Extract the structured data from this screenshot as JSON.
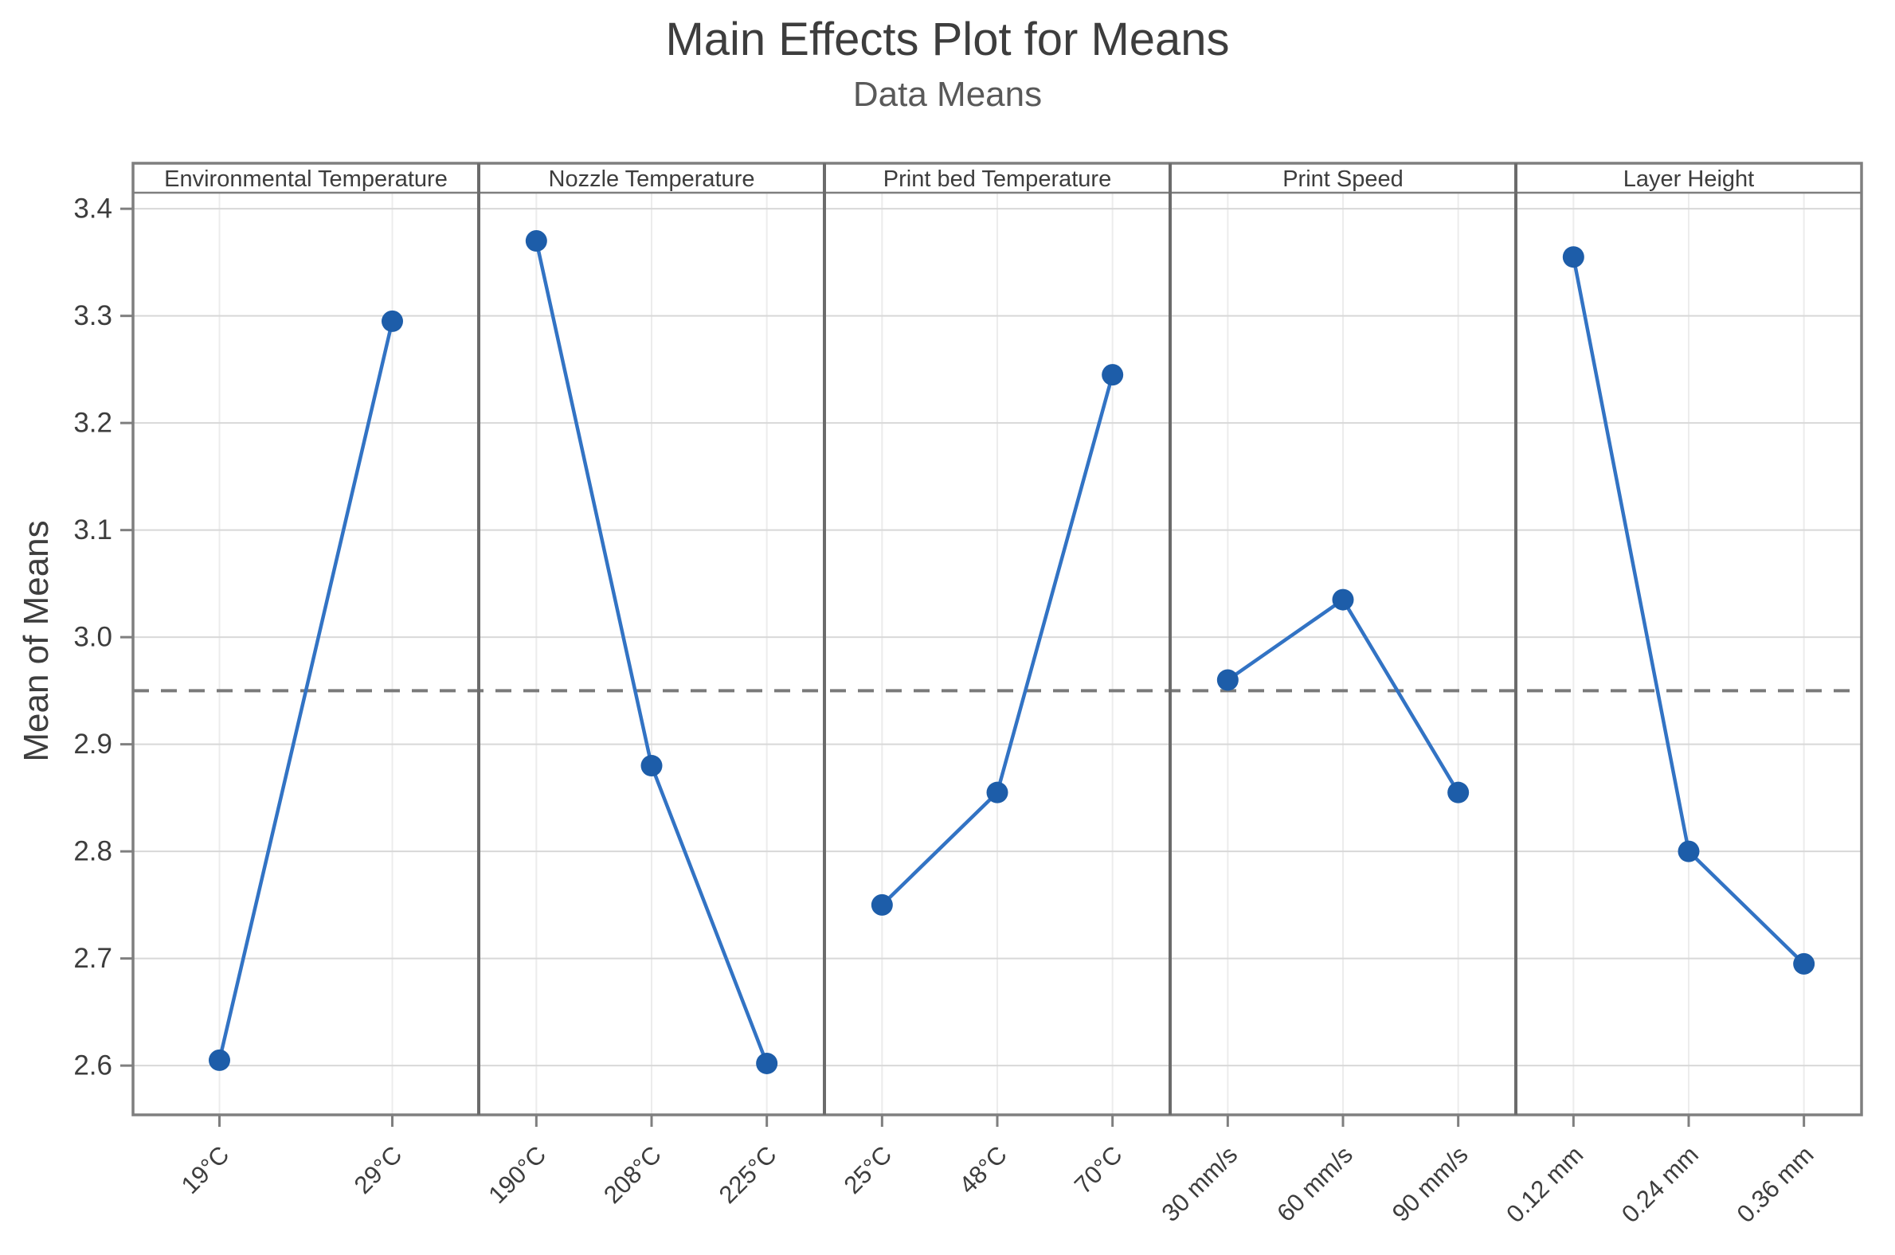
{
  "chart_data": {
    "type": "line",
    "title": "Main Effects Plot for Means",
    "subtitle": "Data Means",
    "ylabel": "Mean of Means",
    "ylim": [
      2.554,
      3.415
    ],
    "yticks": [
      2.6,
      2.7,
      2.8,
      2.9,
      3.0,
      3.1,
      3.2,
      3.3,
      3.4
    ],
    "reference_line": 2.95,
    "grid": true,
    "legend": "none",
    "panels": [
      {
        "title": "Environmental Temperature",
        "categories": [
          "19°C",
          "29°C"
        ],
        "values": [
          2.605,
          3.295
        ]
      },
      {
        "title": "Nozzle Temperature",
        "categories": [
          "190°C",
          "208°C",
          "225°C"
        ],
        "values": [
          3.37,
          2.88,
          2.602
        ]
      },
      {
        "title": "Print bed Temperature",
        "categories": [
          "25°C",
          "48°C",
          "70°C"
        ],
        "values": [
          2.75,
          2.855,
          3.245
        ]
      },
      {
        "title": "Print Speed",
        "categories": [
          "30 mm/s",
          "60 mm/s",
          "90 mm/s"
        ],
        "values": [
          2.96,
          3.035,
          2.855
        ]
      },
      {
        "title": "Layer Height",
        "categories": [
          "0.12 mm",
          "0.24 mm",
          "0.36 mm"
        ],
        "values": [
          3.355,
          2.8,
          2.695
        ]
      }
    ],
    "colors": {
      "marker": "#1d5da9",
      "line": "#3273c4",
      "reference": "#7a7a7a",
      "border": "#7f7f7f",
      "separator": "#6b6b6b",
      "grid_h": "#d8d8d8",
      "grid_v": "#ececec",
      "text": "#3d3d3d",
      "subtitle": "#595959"
    }
  }
}
